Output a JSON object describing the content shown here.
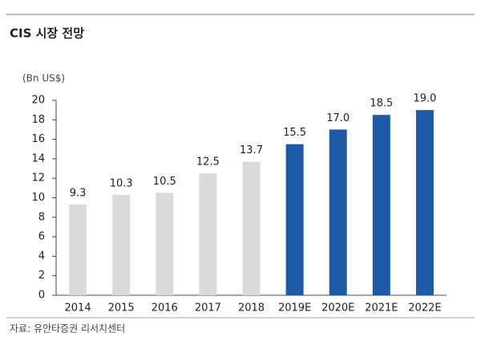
{
  "chart_data": {
    "type": "bar",
    "title": "CIS 시장 전망",
    "y_label": "(Bn US$)",
    "source": "자료: 유안타증권 리서치센터",
    "categories": [
      "2014",
      "2015",
      "2016",
      "2017",
      "2018",
      "2019E",
      "2020E",
      "2021E",
      "2022E"
    ],
    "values": [
      9.3,
      10.3,
      10.5,
      12.5,
      13.7,
      15.5,
      17.0,
      18.5,
      19.0
    ],
    "value_labels": [
      "9.3",
      "10.3",
      "10.5",
      "12.5",
      "13.7",
      "15.5",
      "17.0",
      "18.5",
      "19.0"
    ],
    "colors": [
      "#dadada",
      "#dadada",
      "#dadada",
      "#dadada",
      "#dadada",
      "#1f5aa6",
      "#1f5aa6",
      "#1f5aa6",
      "#1f5aa6"
    ],
    "ylim": [
      0,
      20
    ],
    "yticks": [
      0,
      2,
      4,
      6,
      8,
      10,
      12,
      14,
      16,
      18,
      20
    ],
    "grid": false
  }
}
